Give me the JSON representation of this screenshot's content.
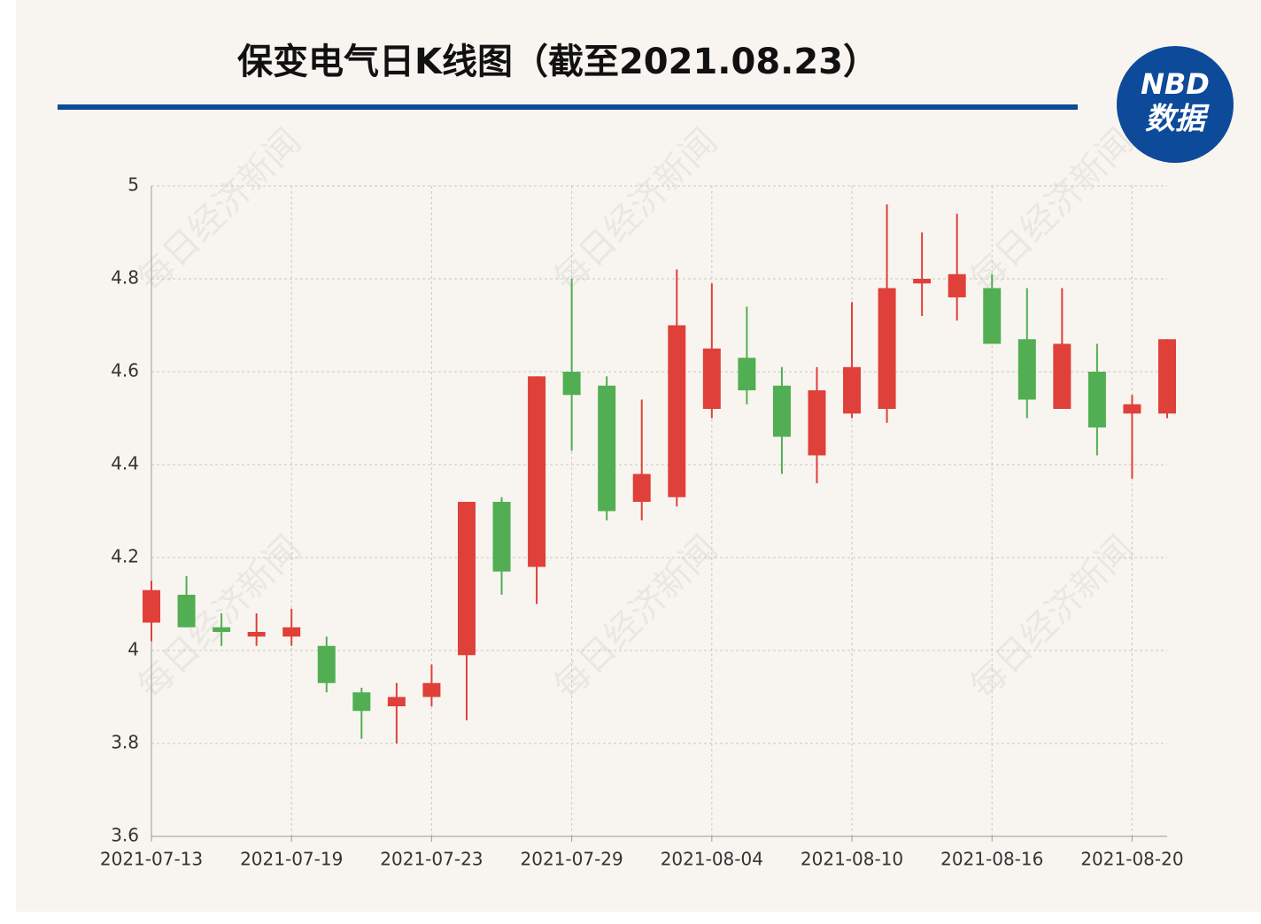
{
  "chart_data": {
    "type": "candlestick",
    "title": "保变电气日K线图（截至2021.08.23）",
    "watermark": "每日经济新闻",
    "logo": {
      "top": "NBD",
      "bottom": "数据"
    },
    "categories": [
      "2021-07-13",
      null,
      null,
      null,
      "2021-07-19",
      null,
      null,
      null,
      "2021-07-23",
      null,
      null,
      null,
      "2021-07-29",
      null,
      null,
      null,
      "2021-08-04",
      null,
      null,
      null,
      "2021-08-10",
      null,
      null,
      null,
      "2021-08-16",
      null,
      null,
      null,
      "2021-08-20",
      null
    ],
    "open": [
      4.06,
      4.12,
      4.05,
      4.03,
      4.03,
      4.01,
      3.91,
      3.88,
      3.9,
      3.99,
      4.32,
      4.18,
      4.6,
      4.57,
      4.32,
      4.33,
      4.52,
      4.63,
      4.57,
      4.42,
      4.51,
      4.52,
      4.79,
      4.76,
      4.78,
      4.67,
      4.52,
      4.6,
      4.51,
      4.51
    ],
    "high": [
      4.15,
      4.16,
      4.08,
      4.08,
      4.09,
      4.03,
      3.92,
      3.93,
      3.97,
      4.32,
      4.33,
      4.59,
      4.8,
      4.59,
      4.54,
      4.82,
      4.79,
      4.74,
      4.61,
      4.61,
      4.75,
      4.96,
      4.9,
      4.94,
      4.81,
      4.78,
      4.78,
      4.66,
      4.55,
      4.67
    ],
    "low": [
      4.02,
      4.05,
      4.01,
      4.01,
      4.01,
      3.91,
      3.81,
      3.8,
      3.88,
      3.85,
      4.12,
      4.1,
      4.43,
      4.28,
      4.28,
      4.31,
      4.5,
      4.53,
      4.38,
      4.36,
      4.5,
      4.49,
      4.72,
      4.71,
      4.66,
      4.5,
      4.52,
      4.42,
      4.37,
      4.5
    ],
    "close": [
      4.13,
      4.05,
      4.04,
      4.04,
      4.05,
      3.93,
      3.87,
      3.9,
      3.93,
      4.32,
      4.17,
      4.59,
      4.55,
      4.3,
      4.38,
      4.7,
      4.65,
      4.56,
      4.46,
      4.56,
      4.61,
      4.78,
      4.8,
      4.81,
      4.66,
      4.54,
      4.66,
      4.48,
      4.53,
      4.67
    ],
    "up_color": "#e0403a",
    "down_color": "#52ae52",
    "ylim": [
      3.6,
      5
    ],
    "yticks": [
      3.6,
      3.8,
      4,
      4.2,
      4.4,
      4.6,
      4.8,
      5
    ],
    "grid": true
  }
}
